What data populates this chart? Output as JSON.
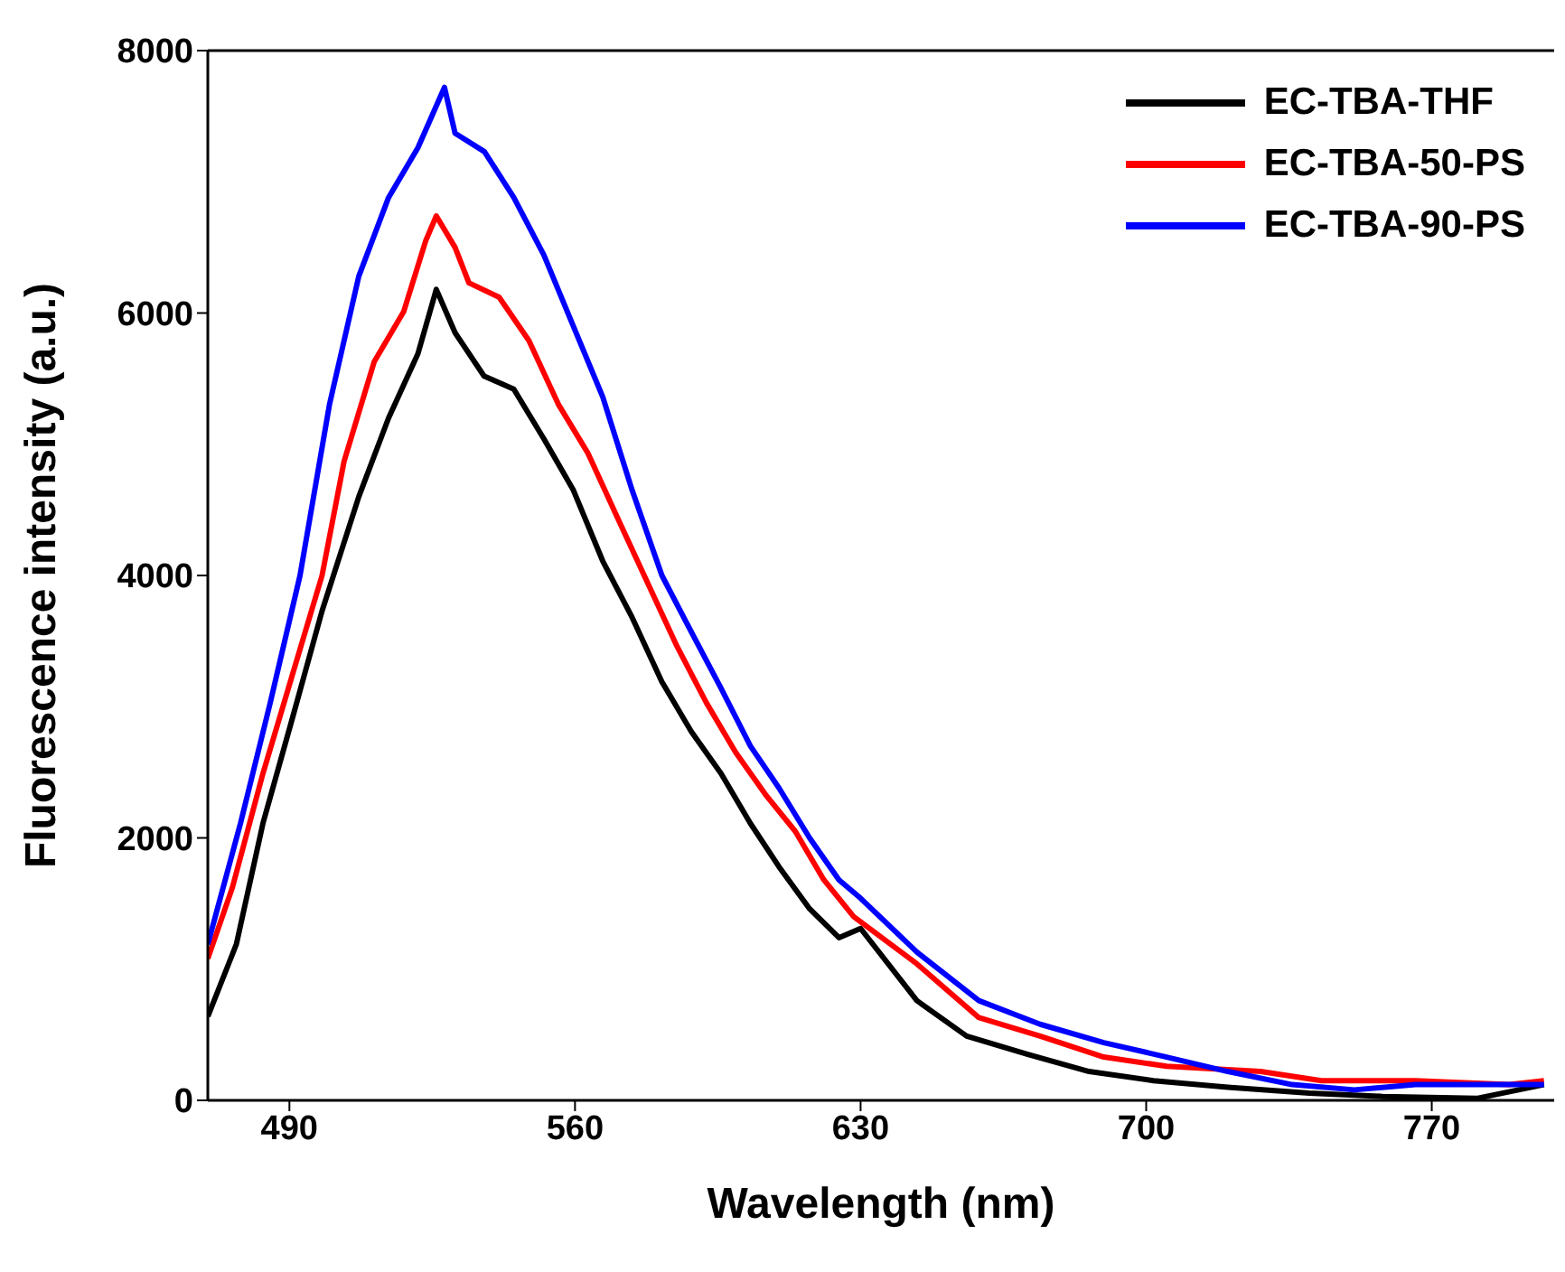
{
  "chart_data": {
    "type": "line",
    "xlabel": "Wavelength (nm)",
    "ylabel": "Fluorescence intensity (a.u.)",
    "xlim": [
      470,
      800
    ],
    "xticks": [
      490,
      560,
      630,
      700,
      770
    ],
    "ylim": [
      0,
      8000
    ],
    "yticks": [
      0,
      2000,
      4000,
      6000,
      8000
    ],
    "legend": "top right",
    "marker": "none",
    "line_style": "solid",
    "series": [
      {
        "name": "EC-TBA-THF",
        "color": "#000000",
        "x": [
          470,
          477,
          483.5,
          490.8,
          498,
          507,
          514.3,
          521.5,
          526,
          530.6,
          537.7,
          545,
          552.4,
          559.6,
          566.8,
          574,
          581.3,
          588.5,
          595.8,
          603,
          610,
          617.5,
          624.7,
          630,
          643.8,
          656,
          671,
          686,
          701.8,
          720,
          740,
          758,
          781,
          797.5
        ],
        "values": [
          640,
          1190,
          2110,
          2920,
          3730,
          4600,
          5200,
          5690,
          6180,
          5850,
          5520,
          5420,
          5040,
          4650,
          4110,
          3680,
          3190,
          2810,
          2490,
          2110,
          1780,
          1460,
          1240,
          1310,
          760,
          490,
          350,
          220,
          150,
          100,
          55,
          30,
          15,
          120
        ]
      },
      {
        "name": "EC-TBA-50-PS",
        "color": "#ff0000",
        "x": [
          470,
          476,
          483.5,
          490.8,
          498,
          503.4,
          510.8,
          518,
          523.4,
          526,
          530.6,
          534,
          541.4,
          548.7,
          556,
          563.2,
          570.4,
          577.7,
          585,
          592.2,
          599.4,
          606.7,
          614,
          621,
          628.3,
          643.8,
          659,
          674,
          689.6,
          705,
          728,
          743,
          766,
          789,
          797.5
        ],
        "values": [
          1080,
          1620,
          2490,
          3250,
          4000,
          4870,
          5630,
          6010,
          6550,
          6740,
          6500,
          6230,
          6120,
          5790,
          5300,
          4930,
          4440,
          3950,
          3460,
          3030,
          2650,
          2330,
          2050,
          1680,
          1400,
          1040,
          630,
          490,
          330,
          260,
          220,
          150,
          150,
          120,
          150
        ]
      },
      {
        "name": "EC-TBA-90-PS",
        "color": "#0000ff",
        "x": [
          470,
          478,
          485.3,
          492.6,
          499.8,
          507,
          514.3,
          521.5,
          528,
          530.6,
          537.8,
          545,
          552.4,
          559.6,
          566.8,
          574,
          581.3,
          588.5,
          595.8,
          603,
          610,
          617.5,
          624.7,
          630,
          643.8,
          659,
          674,
          689.6,
          705,
          720,
          735.8,
          751,
          766,
          781,
          797.5
        ],
        "values": [
          1190,
          2110,
          3030,
          4000,
          5300,
          6280,
          6880,
          7260,
          7720,
          7370,
          7230,
          6880,
          6440,
          5900,
          5360,
          4650,
          4000,
          3570,
          3140,
          2700,
          2380,
          2000,
          1680,
          1540,
          1130,
          760,
          580,
          440,
          330,
          220,
          120,
          80,
          120,
          120,
          120
        ]
      }
    ]
  }
}
